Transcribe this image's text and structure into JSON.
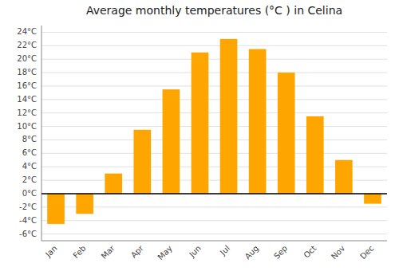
{
  "chart_data": {
    "type": "bar",
    "title": "Average monthly temperatures (°C ) in Celina",
    "categories": [
      "Jan",
      "Feb",
      "Mar",
      "Apr",
      "May",
      "Jun",
      "Jul",
      "Aug",
      "Sep",
      "Oct",
      "Nov",
      "Dec"
    ],
    "values": [
      -4.5,
      -3.0,
      3.0,
      9.5,
      15.5,
      21.0,
      23.0,
      21.5,
      18.0,
      11.5,
      5.0,
      -1.5
    ],
    "color": "#FFA500",
    "ylim": [
      -7,
      25
    ],
    "yticks": [
      {
        "value": -6,
        "label": "-6°C"
      },
      {
        "value": -4,
        "label": "-4°C"
      },
      {
        "value": -2,
        "label": "-2°C"
      },
      {
        "value": 0,
        "label": "0°C"
      },
      {
        "value": 2,
        "label": "2°C"
      },
      {
        "value": 4,
        "label": "4°C"
      },
      {
        "value": 6,
        "label": "6°C"
      },
      {
        "value": 8,
        "label": "8°C"
      },
      {
        "value": 10,
        "label": "10°C"
      },
      {
        "value": 12,
        "label": "12°C"
      },
      {
        "value": 14,
        "label": "14°C"
      },
      {
        "value": 16,
        "label": "16°C"
      },
      {
        "value": 18,
        "label": "18°C"
      },
      {
        "value": 20,
        "label": "20°C"
      },
      {
        "value": 22,
        "label": "22°C"
      },
      {
        "value": 24,
        "label": "24°C"
      }
    ],
    "grid": true
  }
}
